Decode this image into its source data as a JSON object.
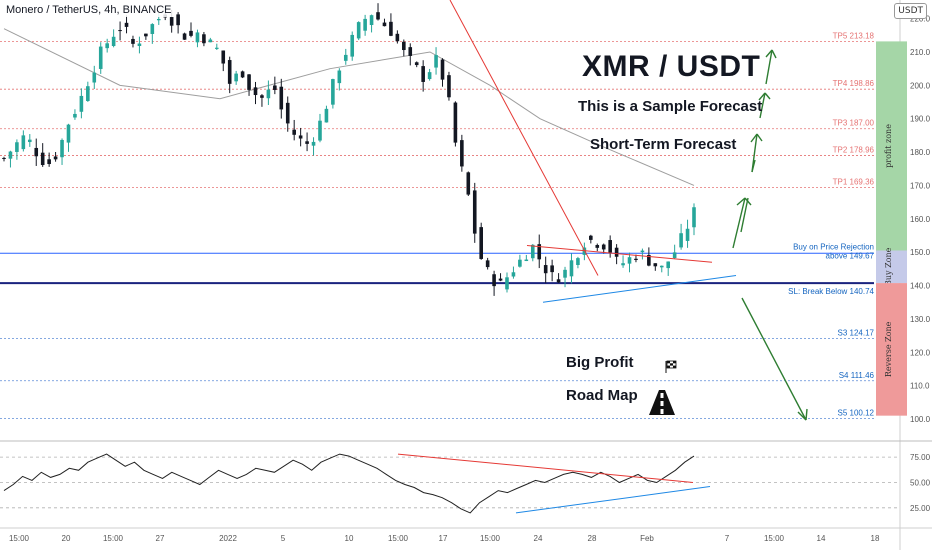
{
  "header": {
    "symbol_title": "Monero / TetherUS, 4h, BINANCE",
    "currency": "USDT"
  },
  "annotations": {
    "pair": "XMR / USDT",
    "sample": "This is a Sample Forecast",
    "term": "Short-Term Forecast",
    "big_profit": "Big Profit",
    "road_map": "Road Map"
  },
  "colors": {
    "candle_up": "#26a69a",
    "candle_down": "#131722",
    "tp_line": "#e57373",
    "support_line": "#2962ff",
    "ma_line": "#9e9e9e",
    "profit_zone": "#a5d6a7",
    "buy_zone": "#c5cae9",
    "reverse_zone": "#ef9a9a",
    "arrow": "#2e7d32",
    "trend_red": "#e53935",
    "trend_blue": "#1e88e5"
  },
  "chart_data": [
    {
      "type": "candlestick",
      "title": "Monero / TetherUS, 4h, BINANCE",
      "ylim": [
        96,
        223
      ],
      "y_ticks": [
        100.0,
        110.0,
        120.0,
        130.0,
        140.0,
        150.0,
        160.0,
        170.0,
        180.0,
        190.0,
        200.0,
        210.0,
        220.0
      ],
      "x_ticks": [
        "15:00",
        "20",
        "15:00",
        "27",
        "2022",
        "5",
        "10",
        "15:00",
        "17",
        "15:00",
        "24",
        "28",
        "Feb",
        "7",
        "15:00",
        "14",
        "18"
      ],
      "price_path": [
        178,
        182,
        185,
        180,
        176,
        180,
        189,
        195,
        203,
        210,
        215,
        218,
        212,
        215,
        219,
        222,
        218,
        214,
        216,
        213,
        210,
        200,
        205,
        198,
        196,
        200,
        190,
        185,
        182,
        186,
        195,
        205,
        212,
        218,
        222,
        219,
        216,
        210,
        206,
        202,
        208,
        200,
        180,
        168,
        150,
        143,
        140,
        144,
        148,
        152,
        146,
        142,
        144,
        149,
        154,
        153,
        152,
        146,
        148,
        150,
        147,
        145,
        149,
        155,
        162
      ],
      "moving_average": [
        [
          "Dec 15 15:00",
          217
        ],
        [
          "Dec 24",
          200
        ],
        [
          "Jan 1",
          196
        ],
        [
          "Jan 8",
          205
        ],
        [
          "Jan 16",
          210
        ],
        [
          "Jan 21",
          200
        ],
        [
          "Jan 24",
          190
        ],
        [
          "Jan 28",
          182
        ],
        [
          "Feb 2",
          170
        ]
      ],
      "levels": [
        {
          "label": "TP5 213.18",
          "value": 213.18,
          "kind": "tp"
        },
        {
          "label": "TP4 198.86",
          "value": 198.86,
          "kind": "tp"
        },
        {
          "label": "TP3 187.00",
          "value": 187.0,
          "kind": "tp"
        },
        {
          "label": "TP2 178.96",
          "value": 178.96,
          "kind": "tp"
        },
        {
          "label": "TP1 169.36",
          "value": 169.36,
          "kind": "tp"
        },
        {
          "label": "Buy on Price Rejection",
          "label2": "above 149.67",
          "value": 149.67,
          "kind": "buy"
        },
        {
          "label": "SL: Break Below 140.74",
          "value": 140.74,
          "kind": "sl"
        },
        {
          "label": "S3 124.17",
          "value": 124.17,
          "kind": "s"
        },
        {
          "label": "S4 111.46",
          "value": 111.46,
          "kind": "s"
        },
        {
          "label": "S5 100.12",
          "value": 100.12,
          "kind": "s"
        }
      ],
      "zones": [
        {
          "label": "profit zone",
          "from": 150.5,
          "to": 213.18,
          "color": "profit_zone"
        },
        {
          "label": "Buy Zone",
          "from": 140.74,
          "to": 150.5,
          "color": "buy_zone"
        },
        {
          "label": "Reverse Zone",
          "from": 101,
          "to": 140.74,
          "color": "reverse_zone"
        }
      ]
    },
    {
      "type": "line",
      "series": [
        {
          "values": [
            42,
            48,
            56,
            52,
            60,
            55,
            58,
            64,
            62,
            70,
            74,
            78,
            72,
            66,
            70,
            62,
            58,
            54,
            60,
            56,
            52,
            48,
            55,
            62,
            58,
            54,
            58,
            64,
            62,
            60,
            66,
            72,
            68,
            62,
            70,
            74,
            78,
            76,
            72,
            68,
            64,
            58,
            52,
            48,
            45,
            40,
            38,
            35,
            30,
            24,
            20,
            30,
            36,
            42,
            40,
            44,
            48,
            52,
            50,
            54,
            58,
            60,
            58,
            55,
            60,
            56,
            50,
            54,
            58,
            52,
            50,
            56,
            62,
            70,
            76
          ]
        }
      ],
      "ylim": [
        10,
        85
      ],
      "y_ticks": [
        25.0,
        50.0,
        75.0
      ]
    }
  ]
}
